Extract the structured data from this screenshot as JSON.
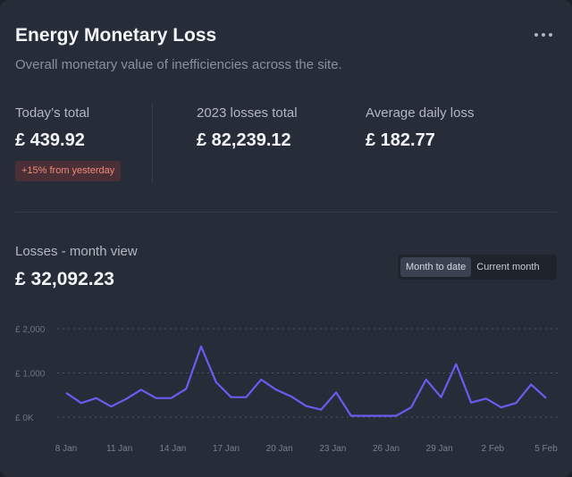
{
  "card": {
    "title": "Energy Monetary Loss",
    "subtitle": "Overall monetary value of inefficiencies across the site."
  },
  "stats": {
    "today_label": "Today’s total",
    "today_value": "£ 439.92",
    "today_badge": "+15% from yesterday",
    "year_label": "2023 losses total",
    "year_value": "£ 82,239.12",
    "avg_label": "Average daily loss",
    "avg_value": "£ 182.77"
  },
  "section": {
    "label": "Losses - month view",
    "value": "£ 32,092.23"
  },
  "toggle": {
    "options": [
      "Month to date",
      "Current month"
    ],
    "selected": "Month to date"
  },
  "colors": {
    "line": "#6a5cf0",
    "badge_text": "#f08a78"
  },
  "chart_data": {
    "type": "line",
    "ylim": [
      0,
      2000
    ],
    "y_ticks": [
      0,
      1000,
      2000
    ],
    "y_tick_labels": [
      "£ 0K",
      "£ 1,000",
      "£ 2,000"
    ],
    "x_tick_labels": [
      "8 Jan",
      "11 Jan",
      "14 Jan",
      "17 Jan",
      "20 Jan",
      "23 Jan",
      "26 Jan",
      "29 Jan",
      "2 Feb",
      "5 Feb"
    ],
    "grid": true,
    "series": [
      {
        "values": [
          550,
          320,
          430,
          240,
          410,
          620,
          430,
          430,
          640,
          1600,
          790,
          450,
          450,
          850,
          620,
          470,
          250,
          170,
          560,
          30,
          30,
          30,
          30,
          220,
          850,
          450,
          1200,
          330,
          420,
          220,
          320,
          740,
          430
        ]
      }
    ]
  }
}
